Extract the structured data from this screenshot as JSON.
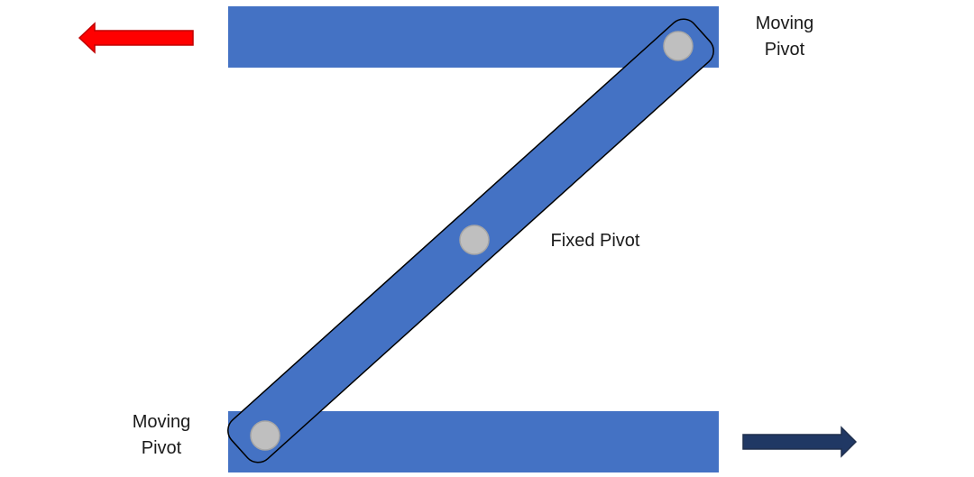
{
  "labels": {
    "top_right": {
      "line1": "Moving",
      "line2": "Pivot"
    },
    "center": "Fixed Pivot",
    "bottom_left": {
      "line1": "Moving",
      "line2": "Pivot"
    }
  },
  "colors": {
    "bar": "#4472C4",
    "link": "#4472C4",
    "link_outline": "#000000",
    "pivot": "#BFBFBF",
    "pivot_outline": "#A6A6A6",
    "arrow_left": "#FF0000",
    "arrow_left_outline": "#C00000",
    "arrow_right": "#203864",
    "arrow_right_outline": "#1F2F4D"
  },
  "icons": {
    "arrow_left": "arrow-left-icon",
    "arrow_right": "arrow-right-icon"
  }
}
